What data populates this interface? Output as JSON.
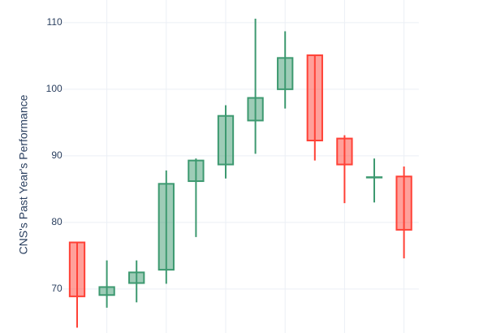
{
  "chart_data": {
    "type": "candlestick",
    "y_label": "CNS's Past Year's Performance",
    "categories": [
      null,
      null,
      null,
      null,
      null,
      null,
      null,
      null,
      null,
      null,
      null,
      null
    ],
    "open": [
      77.0,
      69.1,
      70.9,
      72.9,
      86.2,
      88.7,
      95.3,
      100.0,
      105.1,
      92.6,
      86.8,
      86.9
    ],
    "high": [
      77.0,
      74.3,
      74.3,
      87.8,
      89.6,
      97.6,
      110.6,
      108.7,
      105.1,
      93.1,
      89.6,
      88.4
    ],
    "low": [
      64.2,
      67.2,
      68.0,
      70.8,
      77.8,
      86.6,
      90.3,
      97.1,
      89.3,
      82.9,
      83.0,
      74.6
    ],
    "close": [
      68.9,
      70.3,
      72.5,
      85.8,
      89.3,
      96.0,
      98.7,
      104.7,
      92.3,
      88.7,
      86.8,
      78.9
    ],
    "increasing_color": "#3d9970",
    "decreasing_color": "#ff4136",
    "ylim": [
      63.4,
      113.4
    ],
    "yticks": [
      70,
      80,
      90,
      100,
      110
    ],
    "grid": true
  }
}
